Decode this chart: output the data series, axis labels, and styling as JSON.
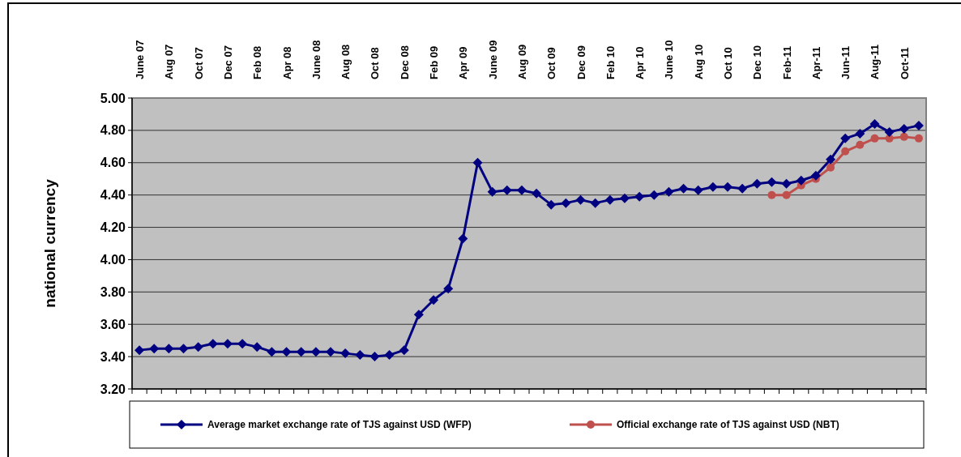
{
  "chart_data": {
    "type": "line",
    "ylabel": "national currency",
    "categories": [
      "June 07",
      null,
      "Aug 07",
      null,
      "Oct 07",
      null,
      "Dec 07",
      null,
      "Feb 08",
      null,
      "Apr 08",
      null,
      "June 08",
      null,
      "Aug 08",
      null,
      "Oct 08",
      null,
      "Dec 08",
      null,
      "Feb 09",
      null,
      "Apr 09",
      null,
      "June 09",
      null,
      "Aug 09",
      null,
      "Oct 09",
      null,
      "Dec 09",
      null,
      "Feb 10",
      null,
      "Apr 10",
      null,
      "June 10",
      null,
      "Aug 10",
      null,
      "Oct 10",
      null,
      "Dec 10",
      null,
      "Feb-11",
      null,
      "Apr-11",
      null,
      "Jun-11",
      null,
      "Aug-11",
      null,
      "Oct-11",
      null
    ],
    "series": [
      {
        "name": "Average market exchange rate of TJS against USD (WFP)",
        "color": "#000080",
        "marker": "diamond",
        "values": [
          3.44,
          3.45,
          3.45,
          3.45,
          3.46,
          3.48,
          3.48,
          3.48,
          3.46,
          3.43,
          3.43,
          3.43,
          3.43,
          3.43,
          3.42,
          3.41,
          3.4,
          3.41,
          3.44,
          3.66,
          3.75,
          3.82,
          4.13,
          4.6,
          4.42,
          4.43,
          4.43,
          4.41,
          4.34,
          4.35,
          4.37,
          4.35,
          4.37,
          4.38,
          4.39,
          4.4,
          4.42,
          4.44,
          4.43,
          4.45,
          4.45,
          4.44,
          4.47,
          4.48,
          4.47,
          4.49,
          4.52,
          4.62,
          4.75,
          4.78,
          4.84,
          4.79,
          4.81,
          4.83
        ]
      },
      {
        "name": "Official exchange rate of TJS against USD (NBT)",
        "color": "#c0504d",
        "marker": "circle",
        "values": [
          null,
          null,
          null,
          null,
          null,
          null,
          null,
          null,
          null,
          null,
          null,
          null,
          null,
          null,
          null,
          null,
          null,
          null,
          null,
          null,
          null,
          null,
          null,
          null,
          null,
          null,
          null,
          null,
          null,
          null,
          null,
          null,
          null,
          null,
          null,
          null,
          null,
          null,
          null,
          null,
          null,
          null,
          null,
          4.4,
          4.4,
          4.46,
          4.5,
          4.57,
          4.67,
          4.71,
          4.75,
          4.75,
          4.76,
          4.75
        ]
      }
    ],
    "ylim": [
      3.2,
      5.0
    ],
    "yticks": [
      {
        "value": 3.2,
        "label": "3.20"
      },
      {
        "value": 3.4,
        "label": "3.40"
      },
      {
        "value": 3.6,
        "label": "3.60"
      },
      {
        "value": 3.8,
        "label": "3.80"
      },
      {
        "value": 4.0,
        "label": "4.00"
      },
      {
        "value": 4.2,
        "label": "4.20"
      },
      {
        "value": 4.4,
        "label": "4.40"
      },
      {
        "value": 4.6,
        "label": "4.60"
      },
      {
        "value": 4.8,
        "label": "4.80"
      },
      {
        "value": 5.0,
        "label": "5.00"
      }
    ],
    "grid": "y",
    "legend": "bottom",
    "line_style": "solid"
  }
}
